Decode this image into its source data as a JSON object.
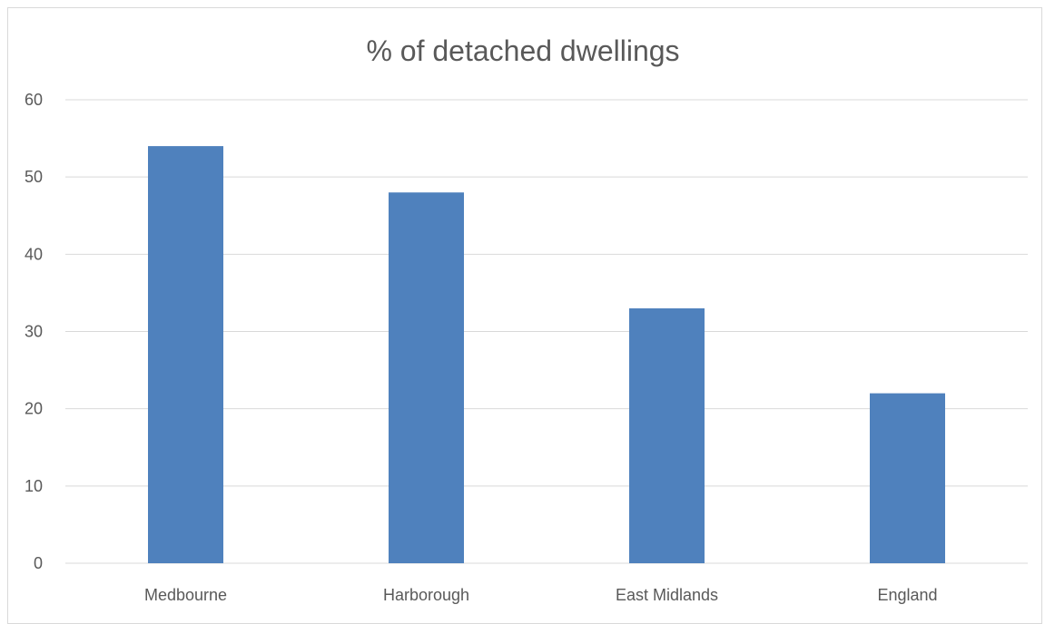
{
  "chart_data": {
    "type": "bar",
    "title": "% of detached dwellings",
    "categories": [
      "Medbourne",
      "Harborough",
      "East Midlands",
      "England"
    ],
    "values": [
      54,
      48,
      33,
      22
    ],
    "ylim": [
      0,
      60
    ],
    "yticks": [
      0,
      10,
      20,
      30,
      40,
      50,
      60
    ],
    "xlabel": "",
    "ylabel": "",
    "grid": true,
    "legend": "none",
    "bar_color": "#4f81bd"
  }
}
